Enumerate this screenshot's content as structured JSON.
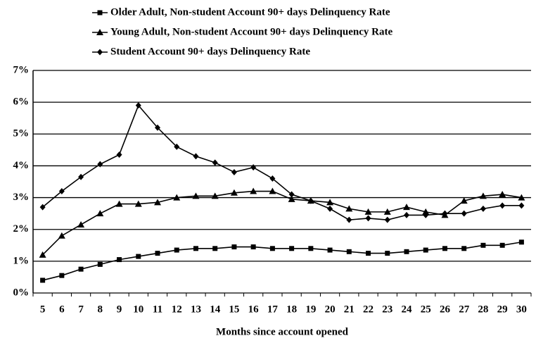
{
  "chart_data": {
    "type": "line",
    "x_label": "Months since account opened",
    "categories": [
      "5",
      "6",
      "7",
      "8",
      "9",
      "10",
      "11",
      "12",
      "13",
      "14",
      "15",
      "16",
      "17",
      "18",
      "19",
      "20",
      "21",
      "22",
      "23",
      "24",
      "25",
      "26",
      "27",
      "28",
      "29",
      "30"
    ],
    "series": [
      {
        "name": "Older Adult, Non-student Account 90+ days Delinquency Rate",
        "color": "#000000",
        "marker": "square",
        "values": [
          0.4,
          0.55,
          0.75,
          0.9,
          1.05,
          1.15,
          1.25,
          1.35,
          1.4,
          1.4,
          1.45,
          1.45,
          1.4,
          1.4,
          1.4,
          1.35,
          1.3,
          1.25,
          1.25,
          1.3,
          1.35,
          1.4,
          1.4,
          1.5,
          1.5,
          1.6
        ]
      },
      {
        "name": "Young Adult, Non-student Account 90+ days Delinquency Rate",
        "color": "#000000",
        "marker": "triangle",
        "values": [
          1.2,
          1.8,
          2.15,
          2.5,
          2.8,
          2.8,
          2.85,
          3.0,
          3.05,
          3.05,
          3.15,
          3.2,
          3.2,
          2.95,
          2.9,
          2.85,
          2.65,
          2.55,
          2.55,
          2.7,
          2.55,
          2.45,
          2.9,
          3.05,
          3.1,
          3.0
        ]
      },
      {
        "name": "Student Account 90+ days Delinquency Rate",
        "color": "#000000",
        "marker": "diamond",
        "values": [
          2.7,
          3.2,
          3.65,
          4.05,
          4.35,
          5.9,
          5.2,
          4.6,
          4.3,
          4.1,
          3.8,
          3.95,
          3.6,
          3.1,
          2.9,
          2.65,
          2.3,
          2.35,
          2.3,
          2.45,
          2.45,
          2.5,
          2.5,
          2.65,
          2.75,
          2.75
        ]
      }
    ],
    "ylim": [
      0,
      7
    ],
    "yticks": [
      {
        "value": 0,
        "label": "0%"
      },
      {
        "value": 1,
        "label": "1%"
      },
      {
        "value": 2,
        "label": "2%"
      },
      {
        "value": 3,
        "label": "3%"
      },
      {
        "value": 4,
        "label": "4%"
      },
      {
        "value": 5,
        "label": "5%"
      },
      {
        "value": 6,
        "label": "6%"
      },
      {
        "value": 7,
        "label": "7%"
      }
    ],
    "grid": true,
    "legend": "top"
  }
}
